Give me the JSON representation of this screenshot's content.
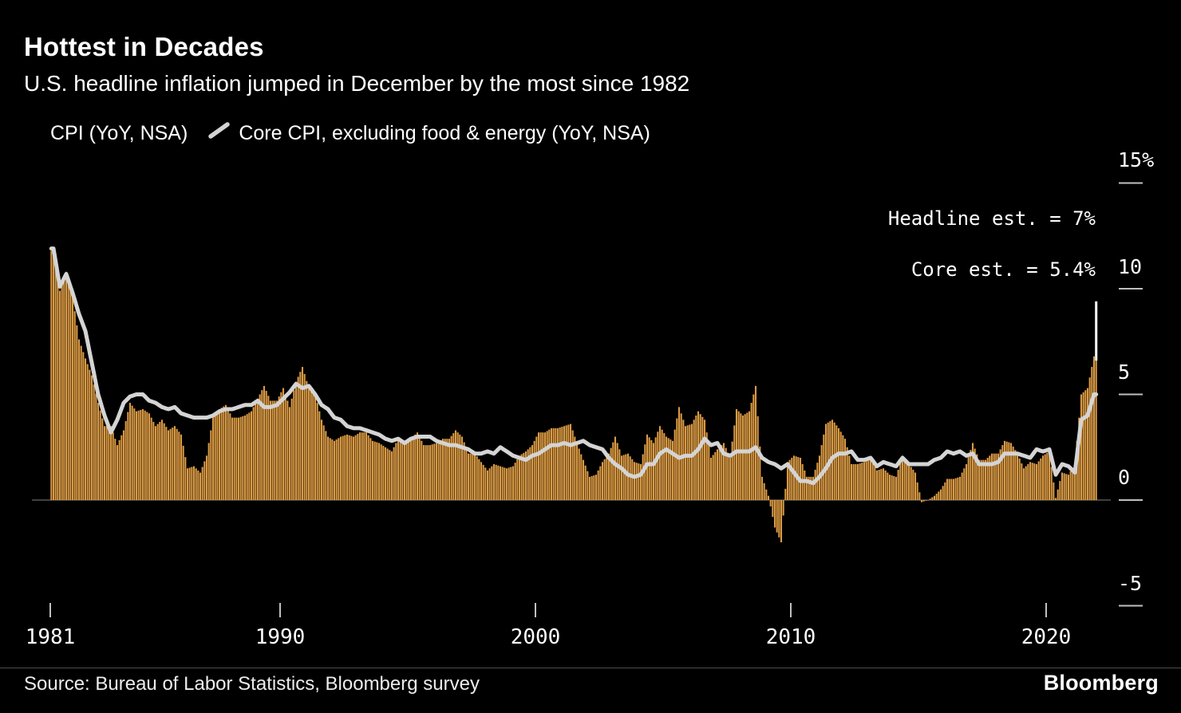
{
  "header": {
    "title": "Hottest in Decades",
    "subtitle": "U.S. headline inflation jumped in December by the most since 1982"
  },
  "legend": {
    "items": [
      {
        "label": "CPI (YoY, NSA)",
        "swatch": "bar",
        "color": "#DA9A43"
      },
      {
        "label": "Core CPI, excluding food & energy (YoY, NSA)",
        "swatch": "line",
        "color": "#D4D4D4"
      }
    ]
  },
  "footer": {
    "source": "Source: Bureau of Labor Statistics, Bloomberg survey",
    "brand": "Bloomberg"
  },
  "chart_data": {
    "type": "bar",
    "title": "Hottest in Decades",
    "subtitle": "U.S. headline inflation jumped in December by the most since 1982",
    "unit": "%",
    "xlim": [
      1981,
      2022
    ],
    "ylim": [
      -5,
      15
    ],
    "grid": false,
    "zero_line": true,
    "legend_position": "top-left",
    "y_axis_side": "right",
    "y_ticks": [
      {
        "label": "15%",
        "value": 15
      },
      {
        "label": "10",
        "value": 10
      },
      {
        "label": "5",
        "value": 5
      },
      {
        "label": "0",
        "value": 0
      },
      {
        "label": "-5",
        "value": -5
      }
    ],
    "x_ticks": [
      {
        "label": "1981",
        "value": 1981
      },
      {
        "label": "1990",
        "value": 1990
      },
      {
        "label": "2000",
        "value": 2000
      },
      {
        "label": "2010",
        "value": 2010
      },
      {
        "label": "2020",
        "value": 2020
      }
    ],
    "annotations": [
      {
        "text": "Headline est. = 7%"
      },
      {
        "text": "Core est. = 5.4%"
      }
    ],
    "estimates": {
      "headline_pct": 7.0,
      "core_pct": 5.4
    },
    "est_marker": {
      "year": 2021.96,
      "from": 6.6,
      "to": 9.4
    },
    "resolution": "quarterly anchors (Feb/May/Aug/Nov), 1981-2021, interpolated to monthly bars",
    "series": [
      {
        "name": "CPI (YoY, NSA)",
        "kind": "bar",
        "color": "#DA9A43",
        "values": [
          11.8,
          9.9,
          10.8,
          9.6,
          7.6,
          6.7,
          5.9,
          4.6,
          3.5,
          3.5,
          2.6,
          3.3,
          4.6,
          4.2,
          4.3,
          4.1,
          3.5,
          3.8,
          3.3,
          3.5,
          3.1,
          1.5,
          1.6,
          1.3,
          2.1,
          3.9,
          4.3,
          4.5,
          3.9,
          3.9,
          4.0,
          4.2,
          4.8,
          5.4,
          4.7,
          4.7,
          5.3,
          4.4,
          5.6,
          6.3,
          5.3,
          5.0,
          3.8,
          3.0,
          2.8,
          3.0,
          3.1,
          3.0,
          3.2,
          3.2,
          2.8,
          2.7,
          2.5,
          2.3,
          2.9,
          2.7,
          2.9,
          3.2,
          2.6,
          2.6,
          2.7,
          2.9,
          2.9,
          3.3,
          3.0,
          2.2,
          2.2,
          1.8,
          1.4,
          1.7,
          1.6,
          1.5,
          1.6,
          2.1,
          2.3,
          2.6,
          3.2,
          3.2,
          3.4,
          3.4,
          3.5,
          3.6,
          2.7,
          1.9,
          1.1,
          1.2,
          1.8,
          2.2,
          3.0,
          2.1,
          2.2,
          1.8,
          1.7,
          3.1,
          2.7,
          3.5,
          3.0,
          2.8,
          4.4,
          3.5,
          3.6,
          4.2,
          3.8,
          2.0,
          2.4,
          2.7,
          2.0,
          4.3,
          4.0,
          4.2,
          5.4,
          1.1,
          0.2,
          -1.3,
          -2.0,
          1.8,
          2.1,
          2.0,
          1.1,
          1.1,
          2.1,
          3.6,
          3.8,
          3.4,
          2.9,
          1.7,
          1.7,
          1.8,
          2.0,
          1.4,
          1.5,
          1.2,
          1.1,
          2.1,
          1.7,
          1.3,
          -0.1,
          0.0,
          0.2,
          0.5,
          1.0,
          1.0,
          1.1,
          1.7,
          2.7,
          1.9,
          1.9,
          2.2,
          2.2,
          2.8,
          2.7,
          2.2,
          1.5,
          1.8,
          1.7,
          2.1,
          2.3,
          0.1,
          1.3,
          1.2,
          1.7,
          5.0,
          5.3,
          6.8
        ]
      },
      {
        "name": "Core CPI, excluding food & energy (YoY, NSA)",
        "kind": "line",
        "color": "#D4D4D4",
        "values": [
          11.9,
          10.1,
          10.7,
          9.8,
          8.8,
          8.0,
          6.5,
          5.0,
          4.0,
          3.2,
          3.8,
          4.6,
          4.9,
          5.0,
          5.0,
          4.7,
          4.6,
          4.4,
          4.3,
          4.4,
          4.1,
          4.0,
          3.9,
          3.9,
          3.9,
          4.0,
          4.2,
          4.3,
          4.3,
          4.4,
          4.5,
          4.5,
          4.7,
          4.4,
          4.4,
          4.5,
          4.8,
          5.1,
          5.5,
          5.3,
          5.4,
          5.0,
          4.5,
          4.3,
          3.9,
          3.8,
          3.5,
          3.4,
          3.4,
          3.3,
          3.2,
          3.1,
          2.9,
          2.8,
          2.9,
          2.7,
          2.9,
          3.0,
          3.0,
          3.0,
          2.8,
          2.7,
          2.6,
          2.6,
          2.5,
          2.4,
          2.2,
          2.2,
          2.3,
          2.2,
          2.5,
          2.3,
          2.1,
          2.0,
          1.9,
          2.1,
          2.2,
          2.4,
          2.6,
          2.6,
          2.7,
          2.6,
          2.7,
          2.8,
          2.6,
          2.5,
          2.4,
          2.0,
          1.7,
          1.5,
          1.2,
          1.1,
          1.2,
          1.7,
          1.7,
          2.2,
          2.4,
          2.2,
          2.0,
          2.1,
          2.1,
          2.4,
          2.9,
          2.6,
          2.7,
          2.2,
          2.1,
          2.3,
          2.3,
          2.3,
          2.5,
          2.0,
          1.8,
          1.7,
          1.5,
          1.7,
          1.3,
          0.9,
          0.9,
          0.8,
          1.1,
          1.5,
          2.0,
          2.2,
          2.2,
          2.3,
          1.9,
          1.9,
          2.0,
          1.6,
          1.8,
          1.7,
          1.6,
          2.0,
          1.7,
          1.7,
          1.7,
          1.7,
          1.9,
          2.0,
          2.3,
          2.2,
          2.3,
          2.1,
          2.2,
          1.7,
          1.7,
          1.7,
          1.8,
          2.2,
          2.2,
          2.2,
          2.1,
          2.0,
          2.4,
          2.3,
          2.4,
          1.2,
          1.7,
          1.6,
          1.3,
          3.8,
          4.0,
          5.0
        ]
      }
    ]
  }
}
